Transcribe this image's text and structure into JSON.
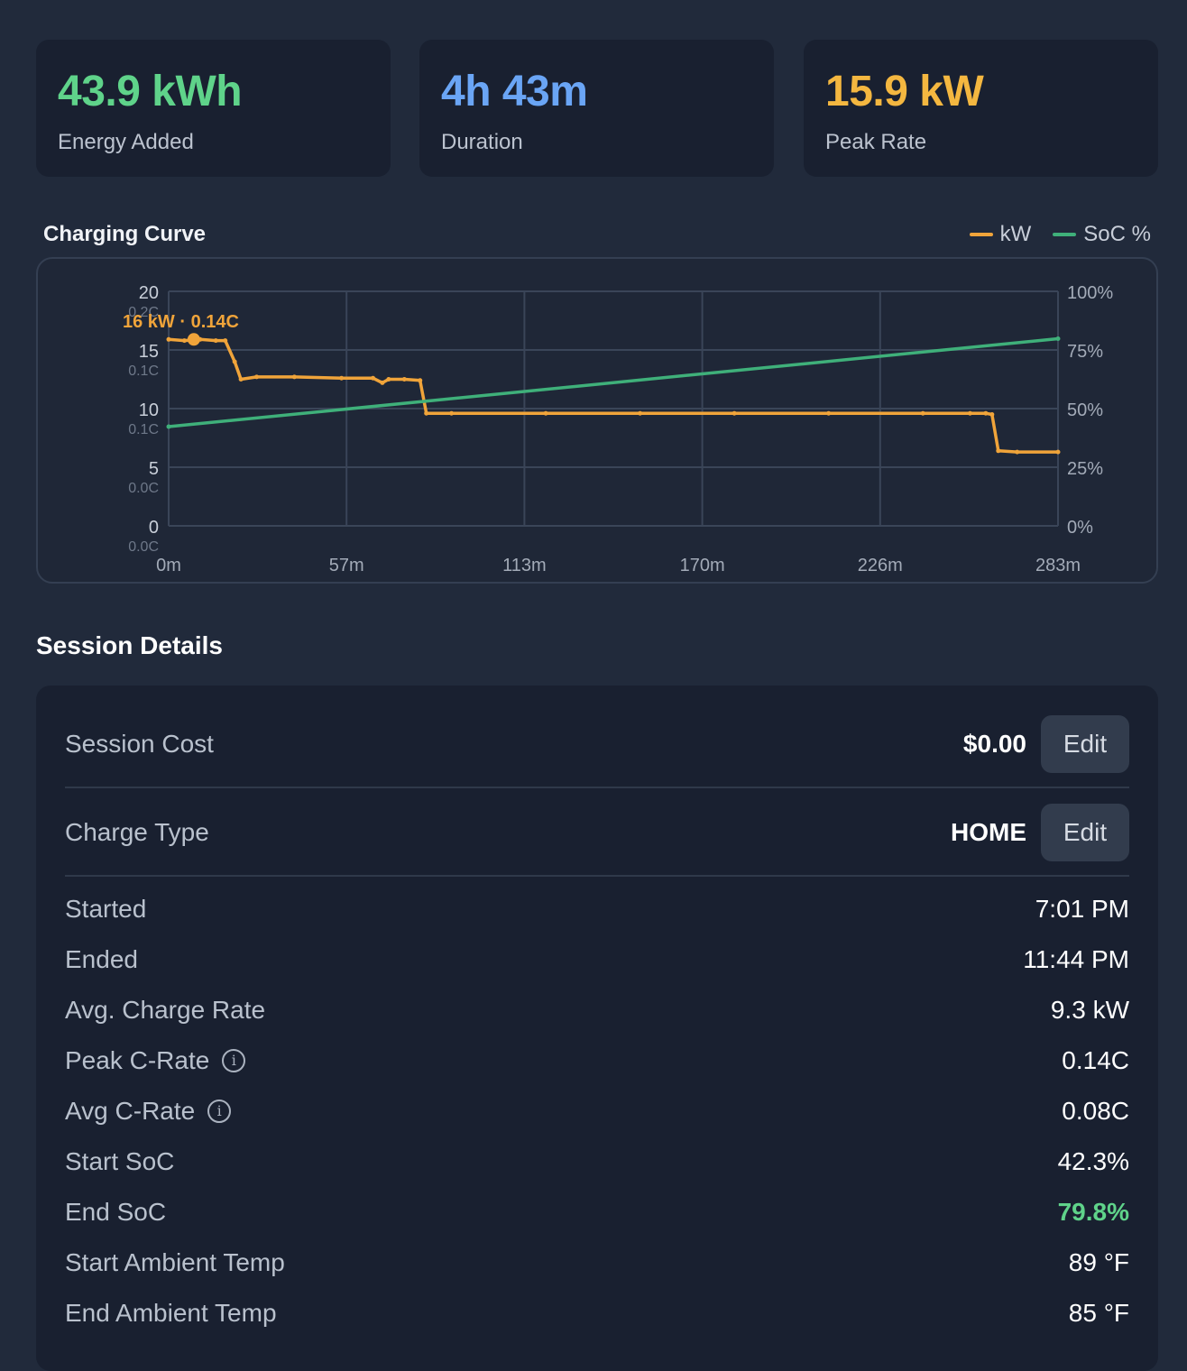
{
  "stats": [
    {
      "value": "43.9 kWh",
      "label": "Energy Added",
      "color": "#5fd38a"
    },
    {
      "value": "4h 43m",
      "label": "Duration",
      "color": "#6aa5f5"
    },
    {
      "value": "15.9 kW",
      "label": "Peak Rate",
      "color": "#f4b740"
    }
  ],
  "chart": {
    "title": "Charging Curve",
    "legend": [
      {
        "label": "kW",
        "color": "#f0a43a"
      },
      {
        "label": "SoC %",
        "color": "#3fb07a"
      }
    ]
  },
  "chart_data": {
    "type": "line",
    "title": "Charging Curve",
    "x_unit": "minutes",
    "xlim": [
      0,
      283
    ],
    "x_ticks": [
      "0m",
      "57m",
      "113m",
      "170m",
      "226m",
      "283m"
    ],
    "y_left_ticks": [
      "0",
      "5",
      "10",
      "15",
      "20"
    ],
    "y_left_sub_ticks": [
      "0.0C",
      "0.0C",
      "0.1C",
      "0.1C",
      "0.2C"
    ],
    "ylim_left": [
      0,
      20
    ],
    "y_right_ticks": [
      "0%",
      "25%",
      "50%",
      "75%",
      "100%"
    ],
    "ylim_right": [
      0,
      100
    ],
    "grid": true,
    "legend_position": "top-right",
    "annotation": "16 kW · 0.14C",
    "annotation_point": {
      "x": 8,
      "y": 15.9
    },
    "series": [
      {
        "name": "kW",
        "axis": "left",
        "color": "#f0a43a",
        "x": [
          0,
          5,
          10,
          15,
          18,
          21,
          23,
          28,
          40,
          55,
          65,
          68,
          70,
          75,
          80,
          82,
          90,
          120,
          150,
          180,
          210,
          240,
          255,
          260,
          262,
          264,
          270,
          283
        ],
        "y": [
          15.9,
          15.8,
          15.9,
          15.8,
          15.8,
          14.0,
          12.5,
          12.7,
          12.7,
          12.6,
          12.6,
          12.2,
          12.5,
          12.5,
          12.4,
          9.6,
          9.6,
          9.6,
          9.6,
          9.6,
          9.6,
          9.6,
          9.6,
          9.6,
          9.5,
          6.4,
          6.3,
          6.3
        ]
      },
      {
        "name": "SoC %",
        "axis": "right",
        "color": "#3fb07a",
        "x": [
          0,
          283
        ],
        "y": [
          42.3,
          79.8
        ]
      }
    ]
  },
  "details": {
    "title": "Session Details",
    "edit_rows": [
      {
        "label": "Session Cost",
        "value": "$0.00",
        "button": "Edit"
      },
      {
        "label": "Charge Type",
        "value": "HOME",
        "button": "Edit"
      }
    ],
    "rows": [
      {
        "label": "Started",
        "value": "7:01 PM",
        "info": false
      },
      {
        "label": "Ended",
        "value": "11:44 PM",
        "info": false
      },
      {
        "label": "Avg. Charge Rate",
        "value": "9.3 kW",
        "info": false
      },
      {
        "label": "Peak C-Rate",
        "value": "0.14C",
        "info": true
      },
      {
        "label": "Avg C-Rate",
        "value": "0.08C",
        "info": true
      },
      {
        "label": "Start SoC",
        "value": "42.3%",
        "info": false
      },
      {
        "label": "End SoC",
        "value": "79.8%",
        "info": false,
        "color": "#5fd38a"
      },
      {
        "label": "Start Ambient Temp",
        "value": "89 °F",
        "info": false
      },
      {
        "label": "End Ambient Temp",
        "value": "85 °F",
        "info": false
      }
    ],
    "info_glyph": "i"
  }
}
